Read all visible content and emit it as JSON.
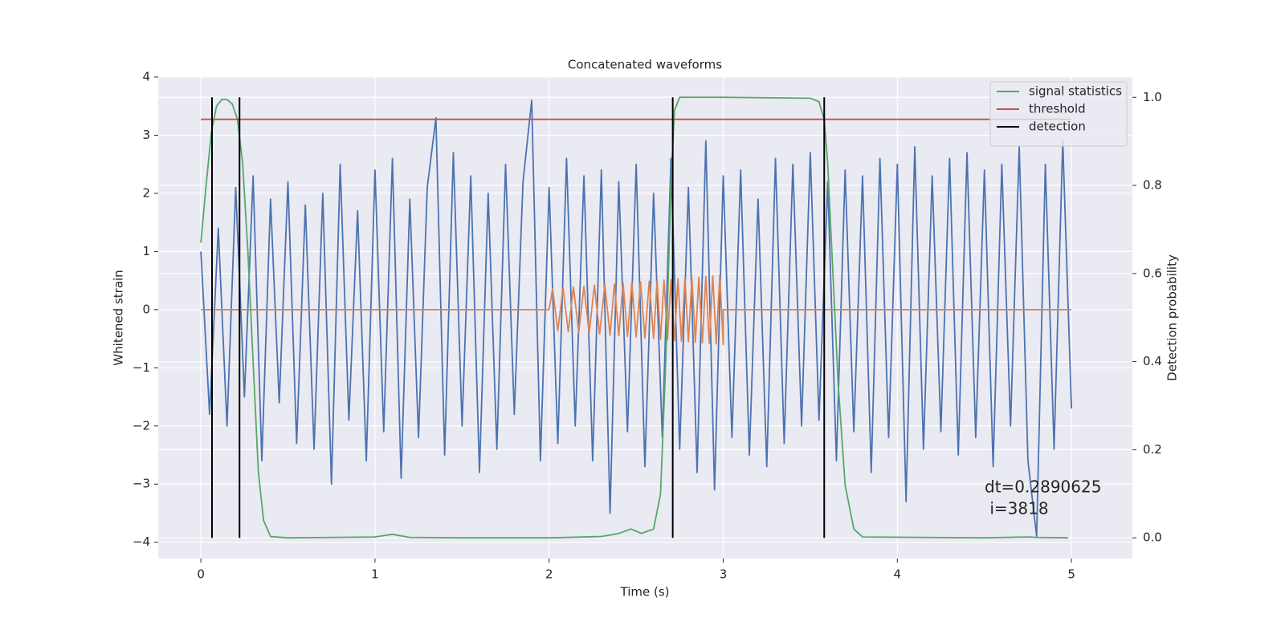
{
  "chart_data": {
    "type": "line",
    "title": "Concatenated waveforms",
    "xlabel": "Time (s)",
    "ylabel": "Whitened strain",
    "y2label": "Detection probability",
    "annotation": [
      "dt=0.2890625",
      " i=3818"
    ],
    "xlim": [
      -0.245,
      5.35
    ],
    "ylim": [
      -4.28,
      4.0
    ],
    "y2lim": [
      -0.047,
      1.046
    ],
    "xticks": [
      0,
      1,
      2,
      3,
      4,
      5
    ],
    "yticks": [
      {
        "value": -4,
        "label": "−4"
      },
      {
        "value": -3,
        "label": "−3"
      },
      {
        "value": -2,
        "label": "−2"
      },
      {
        "value": -1,
        "label": "−1"
      },
      0,
      1,
      2,
      3,
      4
    ],
    "y2ticks": [
      {
        "value": 0,
        "label": "0.0"
      },
      0.2,
      0.4,
      0.6,
      0.8,
      {
        "value": 1,
        "label": "1.0"
      }
    ],
    "grid": true,
    "y2grid": true,
    "background": "#eaeaf2",
    "legend": "upper right",
    "series": [
      {
        "color": "#4c72b0",
        "x": [
          0,
          0.05,
          0.1,
          0.15,
          0.2,
          0.25,
          0.3,
          0.35,
          0.4,
          0.45,
          0.5,
          0.55,
          0.6,
          0.65,
          0.7,
          0.75,
          0.8,
          0.85,
          0.9,
          0.95,
          1.0,
          1.05,
          1.1,
          1.15,
          1.2,
          1.25,
          1.3,
          1.35,
          1.4,
          1.45,
          1.5,
          1.55,
          1.6,
          1.65,
          1.7,
          1.75,
          1.8,
          1.85,
          1.9,
          1.95,
          2.0,
          2.05,
          2.1,
          2.15,
          2.2,
          2.25,
          2.3,
          2.35,
          2.4,
          2.45,
          2.5,
          2.55,
          2.6,
          2.65,
          2.7,
          2.75,
          2.8,
          2.85,
          2.9,
          2.95,
          3.0,
          3.05,
          3.1,
          3.15,
          3.2,
          3.25,
          3.3,
          3.35,
          3.4,
          3.45,
          3.5,
          3.55,
          3.6,
          3.65,
          3.7,
          3.75,
          3.8,
          3.85,
          3.9,
          3.95,
          4.0,
          4.05,
          4.1,
          4.15,
          4.2,
          4.25,
          4.3,
          4.35,
          4.4,
          4.45,
          4.5,
          4.55,
          4.6,
          4.65,
          4.7,
          4.75,
          4.8,
          4.85,
          4.9,
          4.95,
          5.0
        ],
        "values": [
          1.0,
          -1.8,
          1.4,
          -2.0,
          2.1,
          -1.5,
          2.3,
          -2.6,
          1.9,
          -1.6,
          2.2,
          -2.3,
          1.8,
          -2.4,
          2.0,
          -3.0,
          2.5,
          -1.9,
          1.7,
          -2.6,
          2.4,
          -2.1,
          2.6,
          -2.9,
          1.9,
          -2.2,
          2.1,
          3.3,
          -2.5,
          2.7,
          -2.0,
          2.3,
          -2.8,
          2.0,
          -2.4,
          2.5,
          -1.8,
          2.2,
          3.6,
          -2.6,
          2.1,
          -2.3,
          2.6,
          -2.0,
          2.3,
          -2.6,
          2.4,
          -3.5,
          2.2,
          -2.1,
          2.5,
          -2.7,
          2.0,
          -2.2,
          2.6,
          -2.4,
          2.1,
          -2.8,
          2.9,
          -3.1,
          2.3,
          -2.2,
          2.4,
          -2.5,
          1.9,
          -2.7,
          2.6,
          -2.3,
          2.5,
          -2.0,
          2.7,
          -1.9,
          2.2,
          -2.6,
          2.4,
          -2.1,
          2.3,
          -2.8,
          2.6,
          -2.2,
          2.5,
          -3.3,
          2.8,
          -2.4,
          2.3,
          -2.1,
          2.6,
          -2.5,
          2.7,
          -2.2,
          2.4,
          -2.7,
          2.5,
          -2.0,
          2.8,
          -2.6,
          -3.9,
          2.5,
          -2.4,
          2.9,
          -1.7
        ]
      },
      {
        "color": "#dd8452",
        "x": [
          0,
          2.0,
          2.02,
          2.05,
          2.08,
          2.11,
          2.14,
          2.17,
          2.2,
          2.23,
          2.26,
          2.29,
          2.32,
          2.35,
          2.375,
          2.4,
          2.425,
          2.45,
          2.475,
          2.5,
          2.525,
          2.55,
          2.575,
          2.6,
          2.62,
          2.64,
          2.66,
          2.68,
          2.7,
          2.72,
          2.74,
          2.76,
          2.78,
          2.8,
          2.82,
          2.84,
          2.86,
          2.88,
          2.9,
          2.92,
          2.94,
          2.96,
          2.98,
          3.0,
          3.0,
          5.0
        ],
        "values": [
          0,
          0,
          0.36,
          -0.36,
          0.37,
          -0.38,
          0.39,
          -0.39,
          0.4,
          -0.41,
          0.42,
          -0.42,
          0.43,
          -0.44,
          0.44,
          -0.45,
          0.46,
          -0.46,
          0.47,
          -0.47,
          0.48,
          -0.49,
          0.49,
          -0.5,
          0.5,
          -0.51,
          0.51,
          -0.52,
          0.52,
          -0.53,
          0.53,
          -0.54,
          0.54,
          -0.55,
          0.55,
          -0.56,
          0.56,
          -0.57,
          0.57,
          -0.58,
          0.58,
          -0.59,
          0.59,
          -0.6,
          0,
          0
        ]
      },
      {
        "name": "signal statistics",
        "color": "#55a868",
        "axis": "y2",
        "x": [
          0,
          0.03,
          0.06,
          0.09,
          0.12,
          0.15,
          0.18,
          0.21,
          0.24,
          0.27,
          0.3,
          0.33,
          0.36,
          0.4,
          0.5,
          1.0,
          1.1,
          1.2,
          1.5,
          2.0,
          2.3,
          2.4,
          2.47,
          2.53,
          2.6,
          2.64,
          2.67,
          2.7,
          2.72,
          2.75,
          3.0,
          3.5,
          3.55,
          3.58,
          3.6,
          3.63,
          3.66,
          3.7,
          3.75,
          3.8,
          4.5,
          4.75,
          4.8,
          4.98
        ],
        "values": [
          0.67,
          0.8,
          0.92,
          0.98,
          0.995,
          0.995,
          0.985,
          0.95,
          0.85,
          0.65,
          0.4,
          0.15,
          0.04,
          0.003,
          0,
          0.002,
          0.008,
          0.001,
          0,
          0,
          0.003,
          0.01,
          0.02,
          0.01,
          0.02,
          0.1,
          0.4,
          0.8,
          0.97,
          1.0,
          1.0,
          0.998,
          0.99,
          0.95,
          0.85,
          0.6,
          0.35,
          0.12,
          0.02,
          0.002,
          0,
          0.002,
          0.001,
          0
        ]
      },
      {
        "name": "threshold",
        "color": "#c44e52",
        "axis": "y2",
        "x": [
          0,
          5
        ],
        "values": [
          0.95,
          0.95
        ]
      },
      {
        "name": "detection",
        "color": "#000000",
        "axis": "y2",
        "style": "vlines",
        "x": [
          0.064,
          0.222,
          2.71,
          3.58
        ],
        "yrange": [
          0,
          1
        ]
      }
    ]
  }
}
